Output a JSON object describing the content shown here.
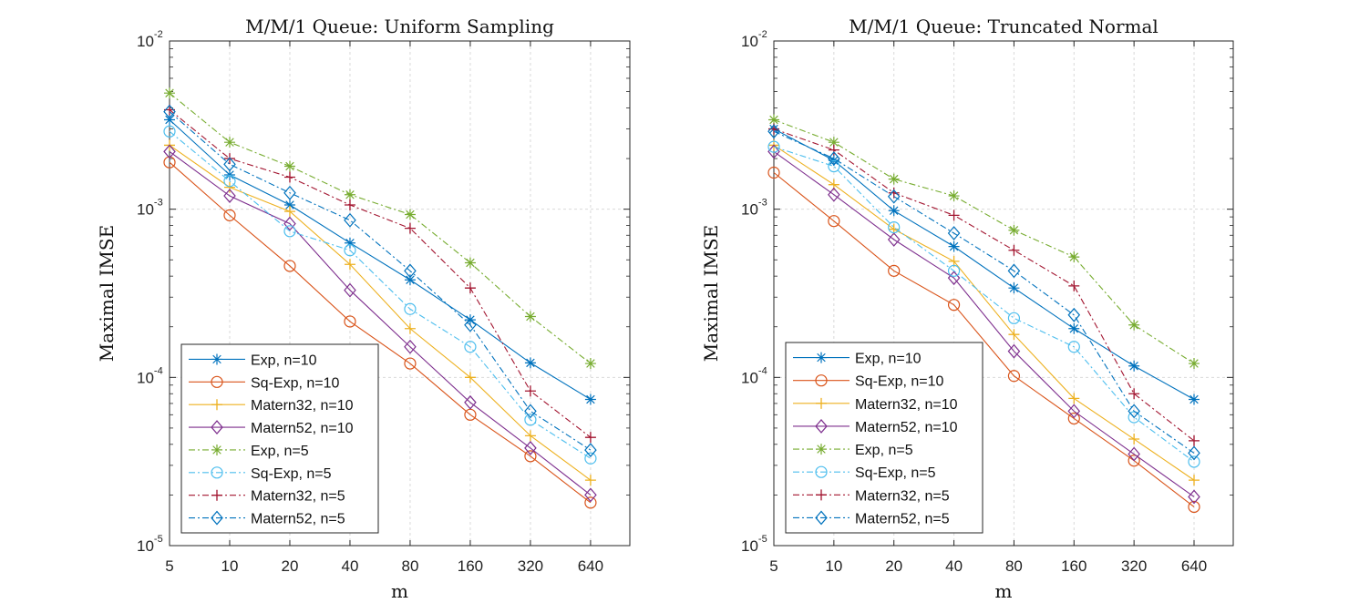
{
  "chart_data": [
    {
      "type": "line",
      "title": "M/M/1 Queue: Uniform Sampling",
      "xlabel": "m",
      "ylabel": "Maximal IMSE",
      "x": [
        5,
        10,
        20,
        40,
        80,
        160,
        320,
        640
      ],
      "x_tick_labels": [
        "5",
        "10",
        "20",
        "40",
        "80",
        "160",
        "320",
        "640"
      ],
      "x_scale": "log2",
      "y_scale": "log",
      "ylim": [
        1e-05,
        0.01
      ],
      "y_ticks": [
        {
          "base": "10",
          "exp": "-5"
        },
        {
          "base": "10",
          "exp": "-4"
        },
        {
          "base": "10",
          "exp": "-3"
        },
        {
          "base": "10",
          "exp": "-2"
        }
      ],
      "grid": true,
      "legend_position": "bottom-left",
      "series": [
        {
          "name": "Exp, n=10",
          "color": "#0072BD",
          "marker": "asterisk",
          "dash": "solid",
          "values": [
            0.0034,
            0.0016,
            0.00106,
            0.00063,
            0.00038,
            0.00022,
            0.000122,
            7.4e-05
          ]
        },
        {
          "name": "Sq-Exp, n=10",
          "color": "#D95319",
          "marker": "circle",
          "dash": "solid",
          "values": [
            0.0019,
            0.00092,
            0.00046,
            0.000215,
            0.000121,
            6e-05,
            3.4e-05,
            1.8e-05
          ]
        },
        {
          "name": "Matern32, n=10",
          "color": "#EDB120",
          "marker": "plus",
          "dash": "solid",
          "values": [
            0.0024,
            0.00135,
            0.00097,
            0.00047,
            0.000195,
            0.0001,
            4.5e-05,
            2.45e-05
          ]
        },
        {
          "name": "Matern52, n=10",
          "color": "#7E2F8E",
          "marker": "diamond",
          "dash": "solid",
          "values": [
            0.0022,
            0.0012,
            0.00082,
            0.00033,
            0.000152,
            7.1e-05,
            3.8e-05,
            2e-05
          ]
        },
        {
          "name": "Exp, n=5",
          "color": "#77AC30",
          "marker": "asterisk",
          "dash": "dashdot",
          "values": [
            0.0049,
            0.0025,
            0.0018,
            0.00122,
            0.00093,
            0.00048,
            0.00023,
            0.000121
          ]
        },
        {
          "name": "Sq-Exp, n=5",
          "color": "#4DBEEE",
          "marker": "circle",
          "dash": "dashdot",
          "values": [
            0.0029,
            0.00147,
            0.00074,
            0.00057,
            0.000255,
            0.000152,
            5.6e-05,
            3.3e-05
          ]
        },
        {
          "name": "Matern32, n=5",
          "color": "#A2142F",
          "marker": "plus",
          "dash": "dashdot",
          "values": [
            0.0039,
            0.002,
            0.00155,
            0.00106,
            0.00077,
            0.00034,
            8.3e-05,
            4.4e-05
          ]
        },
        {
          "name": "Matern52, n=5",
          "color": "#0072BD",
          "marker": "diamond",
          "dash": "dashdot",
          "values": [
            0.0038,
            0.00185,
            0.00125,
            0.00086,
            0.00043,
            0.000205,
            6.3e-05,
            3.7e-05
          ]
        }
      ]
    },
    {
      "type": "line",
      "title": "M/M/1 Queue: Truncated Normal",
      "xlabel": "m",
      "ylabel": "Maximal IMSE",
      "x": [
        5,
        10,
        20,
        40,
        80,
        160,
        320,
        640
      ],
      "x_tick_labels": [
        "5",
        "10",
        "20",
        "40",
        "80",
        "160",
        "320",
        "640"
      ],
      "x_scale": "log2",
      "y_scale": "log",
      "ylim": [
        1e-05,
        0.01
      ],
      "y_ticks": [
        {
          "base": "10",
          "exp": "-5"
        },
        {
          "base": "10",
          "exp": "-4"
        },
        {
          "base": "10",
          "exp": "-3"
        },
        {
          "base": "10",
          "exp": "-2"
        }
      ],
      "grid": true,
      "legend_position": "bottom-left",
      "series": [
        {
          "name": "Exp, n=10",
          "color": "#0072BD",
          "marker": "asterisk",
          "dash": "solid",
          "values": [
            0.003,
            0.00195,
            0.00098,
            0.0006,
            0.00034,
            0.000195,
            0.000117,
            7.4e-05
          ]
        },
        {
          "name": "Sq-Exp, n=10",
          "color": "#D95319",
          "marker": "circle",
          "dash": "solid",
          "values": [
            0.00165,
            0.00085,
            0.00043,
            0.00027,
            0.000102,
            5.7e-05,
            3.2e-05,
            1.7e-05
          ]
        },
        {
          "name": "Matern32, n=10",
          "color": "#EDB120",
          "marker": "plus",
          "dash": "solid",
          "values": [
            0.0024,
            0.0014,
            0.00076,
            0.00049,
            0.00018,
            7.5e-05,
            4.3e-05,
            2.45e-05
          ]
        },
        {
          "name": "Matern52, n=10",
          "color": "#7E2F8E",
          "marker": "diamond",
          "dash": "solid",
          "values": [
            0.0022,
            0.00122,
            0.00066,
            0.00039,
            0.000143,
            6.3e-05,
            3.5e-05,
            1.95e-05
          ]
        },
        {
          "name": "Exp, n=5",
          "color": "#77AC30",
          "marker": "asterisk",
          "dash": "dashdot",
          "values": [
            0.0034,
            0.0025,
            0.00151,
            0.0012,
            0.00075,
            0.00052,
            0.000205,
            0.000121
          ]
        },
        {
          "name": "Sq-Exp, n=5",
          "color": "#4DBEEE",
          "marker": "circle",
          "dash": "dashdot",
          "values": [
            0.00235,
            0.0018,
            0.00078,
            0.00043,
            0.000225,
            0.000152,
            5.8e-05,
            3.15e-05
          ]
        },
        {
          "name": "Matern32, n=5",
          "color": "#A2142F",
          "marker": "plus",
          "dash": "dashdot",
          "values": [
            0.003,
            0.00225,
            0.00125,
            0.00092,
            0.00057,
            0.00035,
            8e-05,
            4.2e-05
          ]
        },
        {
          "name": "Matern52, n=5",
          "color": "#0072BD",
          "marker": "diamond",
          "dash": "dashdot",
          "values": [
            0.0029,
            0.002,
            0.00119,
            0.00072,
            0.00043,
            0.000235,
            6.3e-05,
            3.55e-05
          ]
        }
      ]
    }
  ]
}
